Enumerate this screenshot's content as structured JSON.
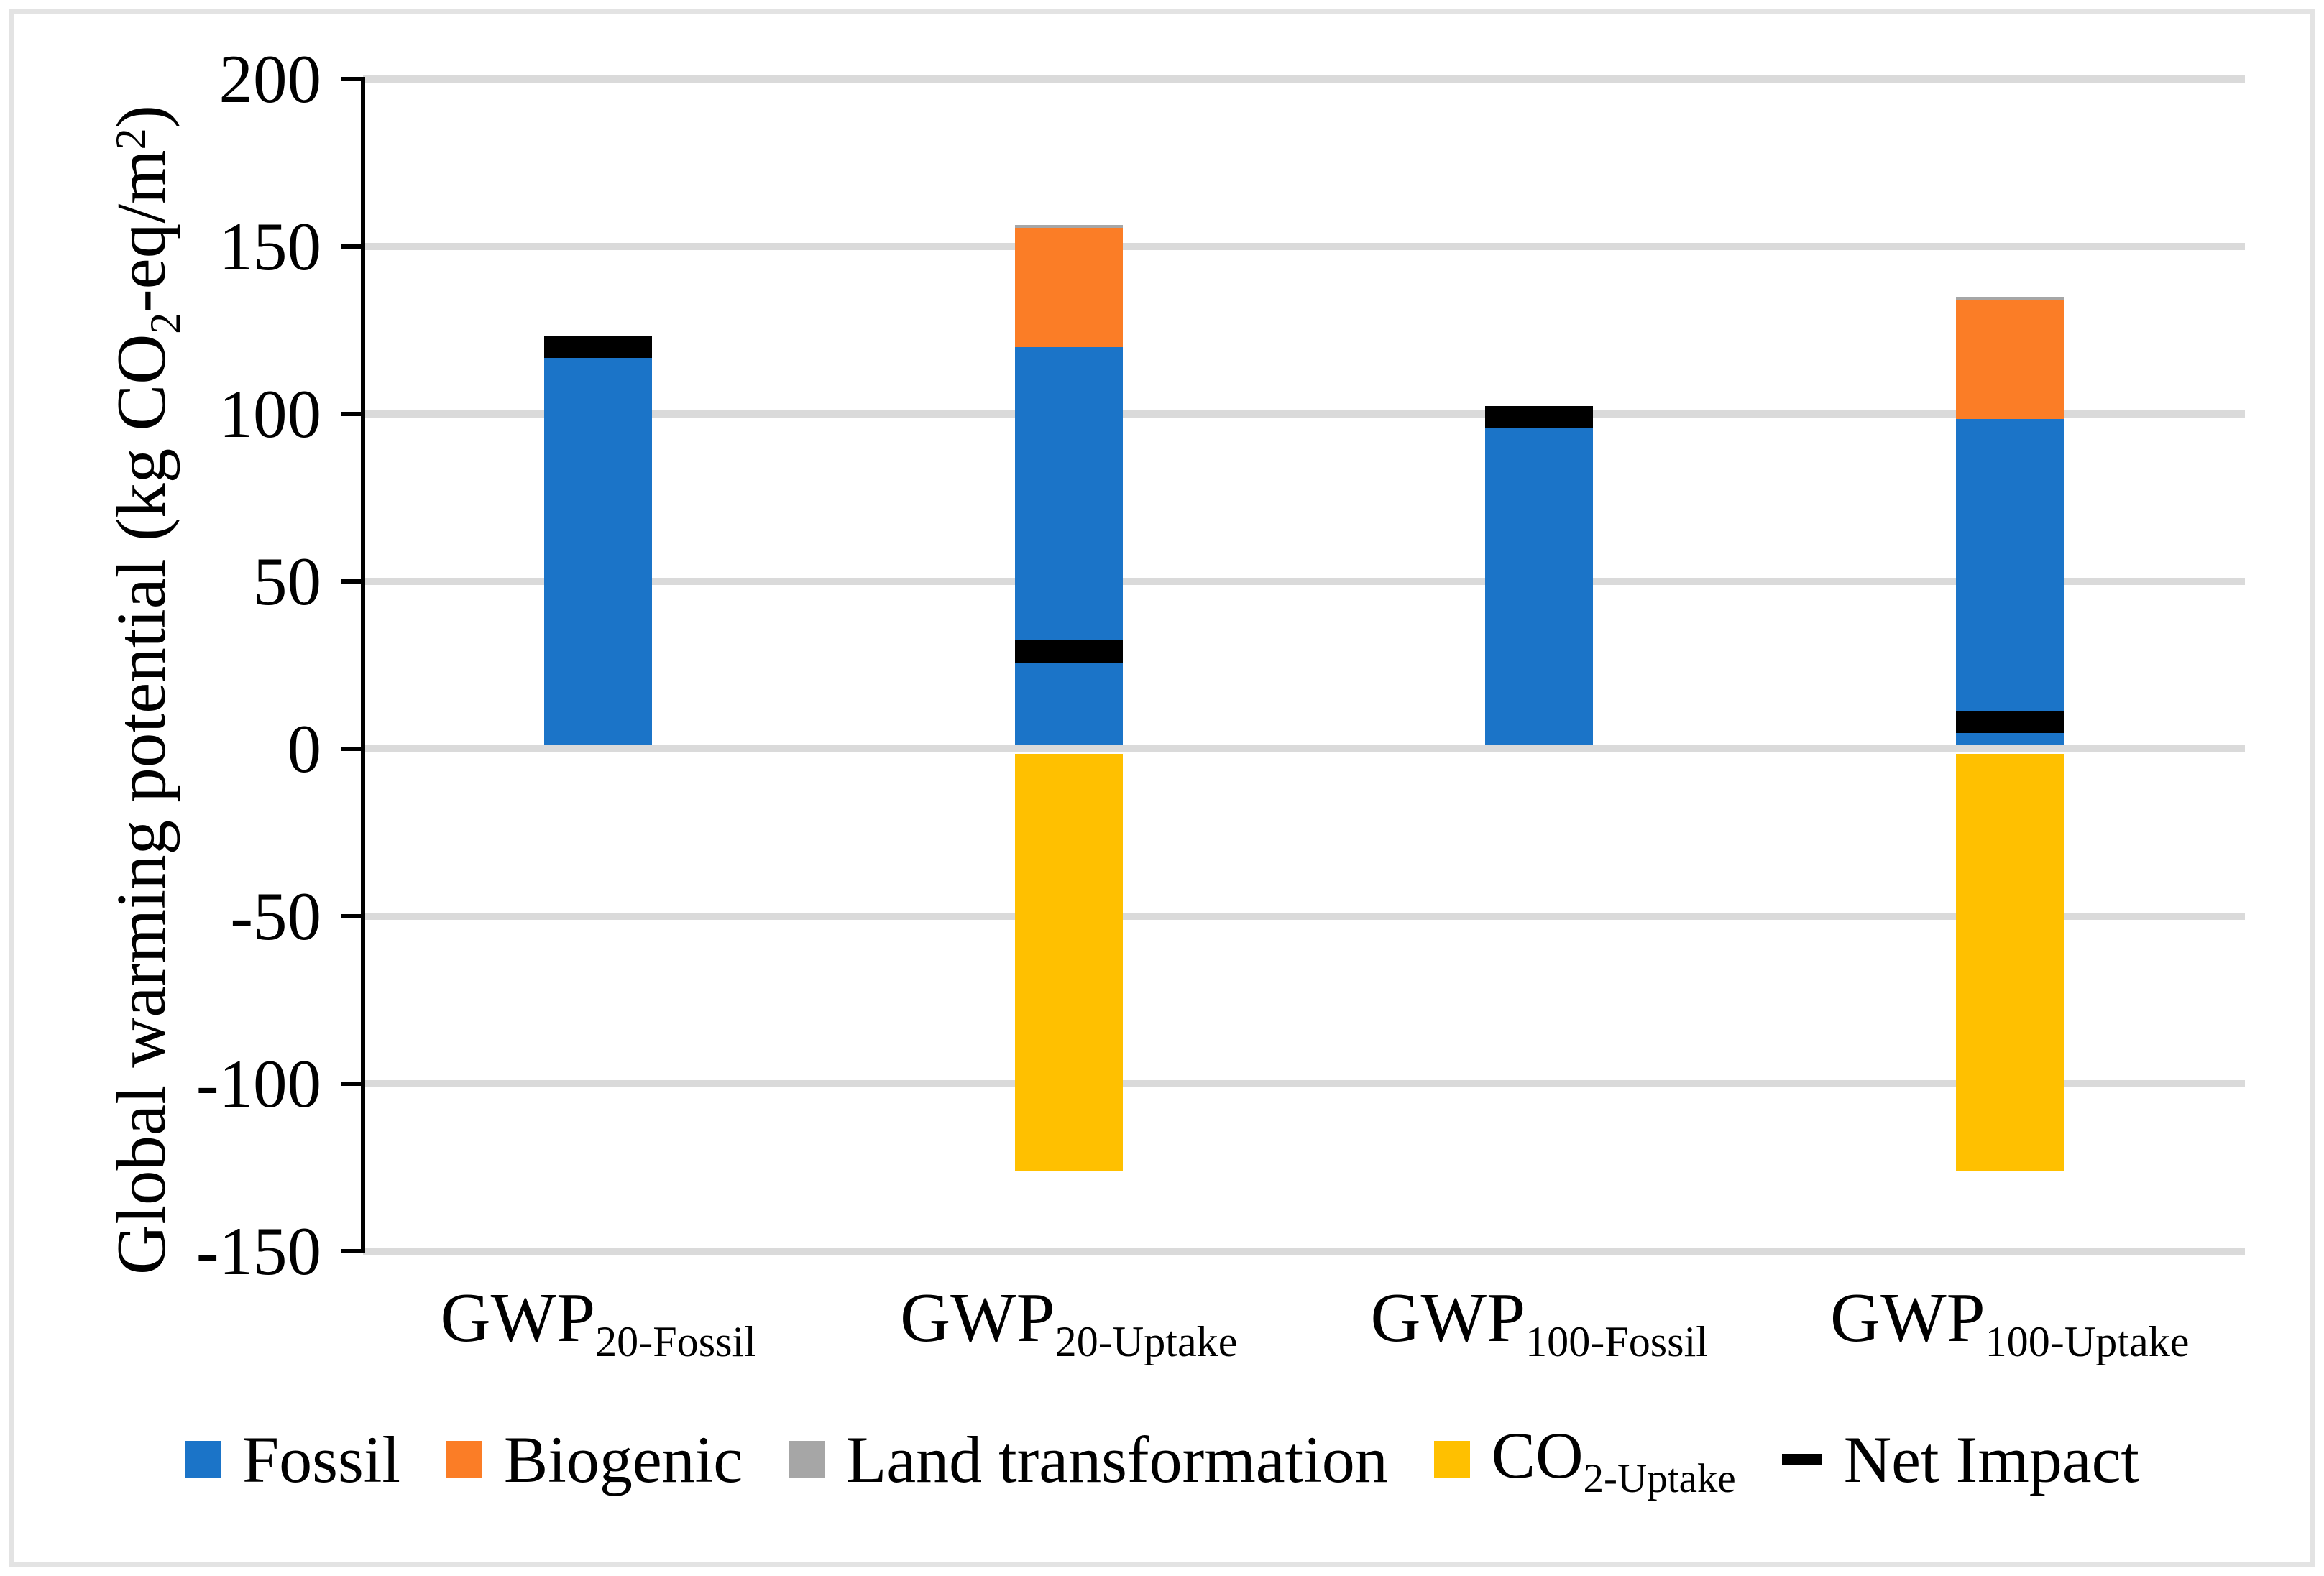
{
  "figure": {
    "background": "#FFFFFF",
    "border_color": "#E3E3E3",
    "gridline_color": "#DADADA",
    "axis_color": "#000000"
  },
  "chart_data": {
    "type": "bar",
    "stacked": true,
    "grid": true,
    "legend_position": "bottom",
    "title": "",
    "xlabel": "",
    "ylabel": "Global warming potential (kg CO2-eq/m2)",
    "ylabel_parts": [
      {
        "t": "Global warming potential (kg CO"
      },
      {
        "t": "2",
        "s": "sub"
      },
      {
        "t": "-eq/m"
      },
      {
        "t": "2",
        "s": "sup"
      },
      {
        "t": ")"
      }
    ],
    "ylim": [
      -150,
      200
    ],
    "ytick_step": 50,
    "yticks": [
      {
        "value": 200,
        "label": "200"
      },
      {
        "value": 150,
        "label": "150"
      },
      {
        "value": 100,
        "label": "100"
      },
      {
        "value": 50,
        "label": "50"
      },
      {
        "value": 0,
        "label": "0"
      },
      {
        "value": -50,
        "label": "-50"
      },
      {
        "value": -100,
        "label": "-100"
      },
      {
        "value": -150,
        "label": "-150"
      }
    ],
    "categories": [
      {
        "text": "GWP20-Fossil",
        "label_parts": [
          {
            "t": "GWP"
          },
          {
            "t": "20-Fossil",
            "s": "sub"
          }
        ]
      },
      {
        "text": "GWP20-Uptake",
        "label_parts": [
          {
            "t": "GWP"
          },
          {
            "t": "20-Uptake",
            "s": "sub"
          }
        ]
      },
      {
        "text": "GWP100-Fossil",
        "label_parts": [
          {
            "t": "GWP"
          },
          {
            "t": "100-Fossil",
            "s": "sub"
          }
        ]
      },
      {
        "text": "GWP100-Uptake",
        "label_parts": [
          {
            "t": "GWP"
          },
          {
            "t": "100-Uptake",
            "s": "sub"
          }
        ]
      }
    ],
    "series": [
      {
        "name": "Fossil",
        "slug": "fossil",
        "type": "stack",
        "color": "#1B74C8",
        "label_parts": [
          {
            "t": "Fossil"
          }
        ],
        "values": [
          117.5,
          120,
          96,
          98.5
        ]
      },
      {
        "name": "Biogenic",
        "slug": "biogenic",
        "type": "stack",
        "color": "#FB7D26",
        "label_parts": [
          {
            "t": "Biogenic"
          }
        ],
        "values": [
          0,
          35.5,
          0,
          35.5
        ]
      },
      {
        "name": "Land transformation",
        "slug": "land-transformation",
        "type": "stack",
        "color": "#A6A6A6",
        "label_parts": [
          {
            "t": "Land transformation"
          }
        ],
        "values": [
          1.5,
          1,
          1.5,
          1
        ]
      },
      {
        "name": "CO2-Uptake",
        "slug": "co2-uptake",
        "type": "stack",
        "color": "#FFC000",
        "label_parts": [
          {
            "t": "CO"
          },
          {
            "t": "2-Uptake",
            "s": "sub"
          }
        ],
        "values": [
          0,
          -126,
          0,
          -126
        ]
      },
      {
        "name": "Net Impact",
        "slug": "net-impact",
        "type": "marker",
        "color": "#000000",
        "label_parts": [
          {
            "t": "Net Impact"
          }
        ],
        "values": [
          120,
          29,
          99,
          8
        ]
      }
    ]
  }
}
